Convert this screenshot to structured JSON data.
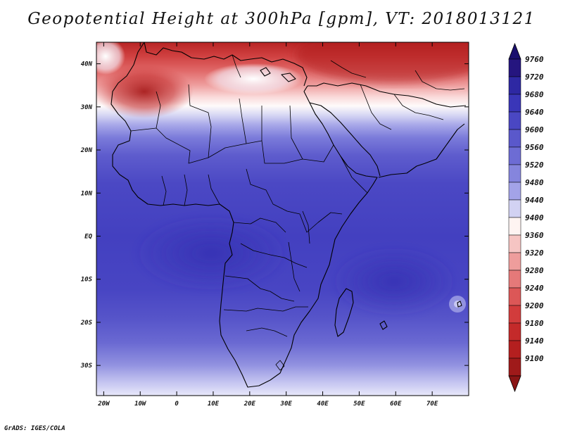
{
  "title": "Geopotential Height at 300hPa [gpm], VT: 2018013121",
  "credit": "GrADS: IGES/COLA",
  "map": {
    "lon_ticks": [
      "20W",
      "10W",
      "0",
      "10E",
      "20E",
      "30E",
      "40E",
      "50E",
      "60E",
      "70E"
    ],
    "lat_ticks": [
      "40N",
      "30N",
      "20N",
      "10N",
      "EQ",
      "10S",
      "20S",
      "30S"
    ],
    "lon_range": [
      -22,
      80
    ],
    "lat_range": [
      -37,
      45
    ]
  },
  "colorbar": {
    "labels": [
      "9760",
      "9720",
      "9680",
      "9640",
      "9600",
      "9560",
      "9520",
      "9480",
      "9440",
      "9400",
      "9360",
      "9320",
      "9280",
      "9240",
      "9200",
      "9180",
      "9140",
      "9100"
    ],
    "colors": [
      "#25157f",
      "#2e28a3",
      "#3a36b8",
      "#4a47c3",
      "#5a58cb",
      "#6d6cd4",
      "#8585dd",
      "#a3a3e8",
      "#d2d2f3",
      "#fef4f2",
      "#f6c5c3",
      "#ee9d9c",
      "#e57979",
      "#dc5757",
      "#d23c3c",
      "#c42a2a",
      "#b41f1f",
      "#9f1a1a"
    ],
    "top_arrow": "#1a0f6e",
    "bottom_arrow": "#8a1515"
  }
}
